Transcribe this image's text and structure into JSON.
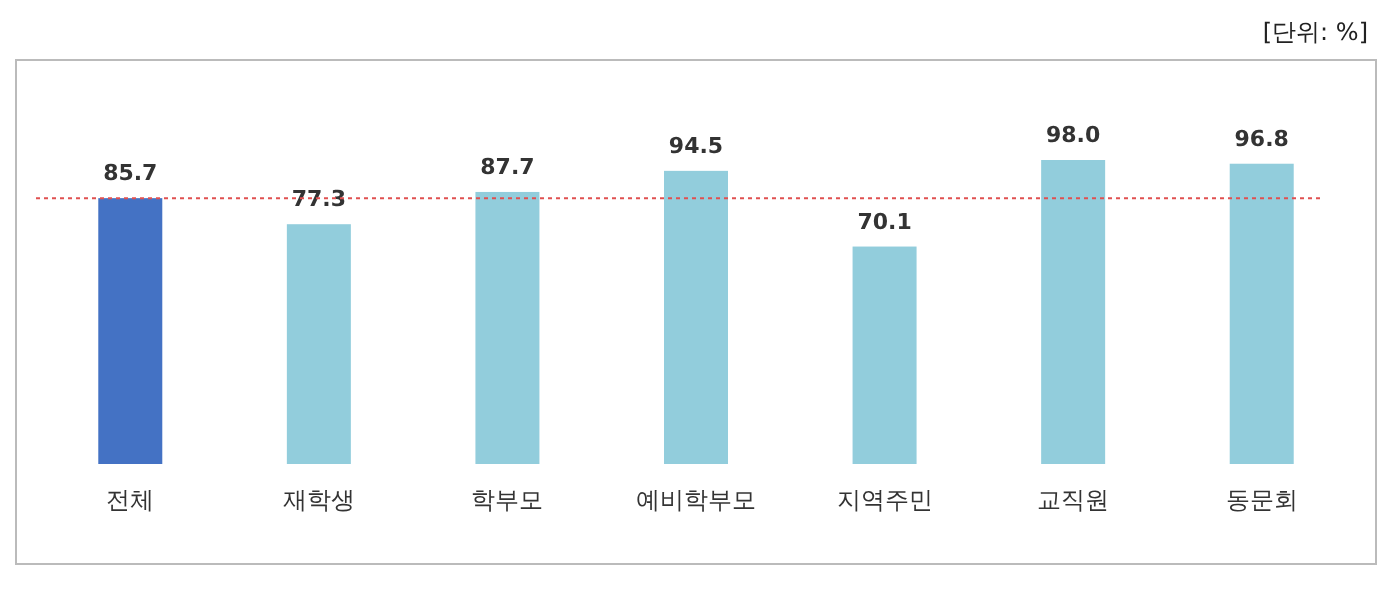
{
  "chart_data": {
    "type": "bar",
    "categories": [
      "전체",
      "재학생",
      "학부모",
      "예비학부모",
      "지역주민",
      "교직원",
      "동문회"
    ],
    "values": [
      85.7,
      77.3,
      87.7,
      94.5,
      70.1,
      98.0,
      96.8
    ],
    "value_labels": [
      "85.7",
      "77.3",
      "87.7",
      "94.5",
      "70.1",
      "98.0",
      "96.8"
    ],
    "colors": [
      "#4472c4",
      "#92cddc",
      "#92cddc",
      "#92cddc",
      "#92cddc",
      "#92cddc",
      "#92cddc"
    ],
    "tick_labels": "x",
    "ref_lines": [
      {
        "axis": "y",
        "value": 85.7,
        "color": "#e05050",
        "line_style": "dotted"
      }
    ],
    "annotations": [
      "[단위: %]"
    ]
  }
}
